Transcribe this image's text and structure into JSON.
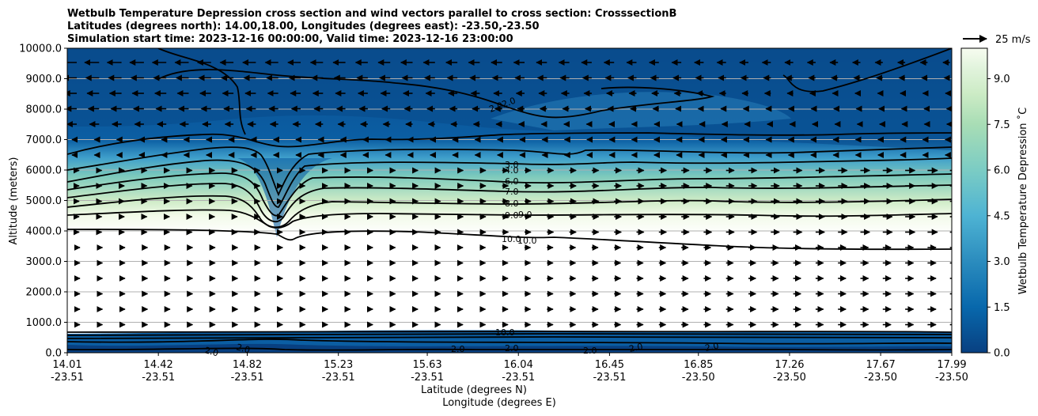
{
  "chart_data": {
    "type": "contourf",
    "title_lines": [
      "Wetbulb Temperature Depression cross section and wind vectors parallel to cross section: CrosssectionB",
      "Latitudes (degrees north): 14.00,18.00, Longitudes (degrees east): -23.50,-23.50",
      "Simulation start time: 2023-12-16 00:00:00, Valid time: 2023-12-16 23:00:00"
    ],
    "ylabel": "Altitude (meters)",
    "xlabel_lines": [
      "Latitude (degrees N)",
      "Longitude (degrees E)"
    ],
    "ylim": [
      0,
      10000
    ],
    "y_ticks": [
      0,
      1000,
      2000,
      3000,
      4000,
      5000,
      6000,
      7000,
      8000,
      9000,
      10000
    ],
    "y_tick_labels": [
      "0.0",
      "1000.0",
      "2000.0",
      "3000.0",
      "4000.0",
      "5000.0",
      "6000.0",
      "7000.0",
      "8000.0",
      "9000.0",
      "10000.0"
    ],
    "x_range": [
      14.01,
      17.99
    ],
    "x_ticks": [
      {
        "lat": "14.01",
        "lon": "-23.51"
      },
      {
        "lat": "14.42",
        "lon": "-23.51"
      },
      {
        "lat": "14.82",
        "lon": "-23.51"
      },
      {
        "lat": "15.23",
        "lon": "-23.51"
      },
      {
        "lat": "15.63",
        "lon": "-23.51"
      },
      {
        "lat": "16.04",
        "lon": "-23.51"
      },
      {
        "lat": "16.45",
        "lon": "-23.51"
      },
      {
        "lat": "16.85",
        "lon": "-23.50"
      },
      {
        "lat": "17.26",
        "lon": "-23.50"
      },
      {
        "lat": "17.67",
        "lon": "-23.50"
      },
      {
        "lat": "17.99",
        "lon": "-23.50"
      }
    ],
    "grid": "horizontal",
    "colorbar": {
      "label": "Wetbulb Temperature Depression ˚C",
      "range": [
        0,
        10
      ],
      "ticks": [
        "0.0",
        "1.5",
        "3.0",
        "4.5",
        "6.0",
        "7.5",
        "9.0"
      ],
      "tick_values": [
        0,
        1.5,
        3,
        4.5,
        6,
        7.5,
        9
      ],
      "colormap": "GnBu_r",
      "colors": [
        "#084081",
        "#0868ac",
        "#2b8cbe",
        "#4eb3d3",
        "#7bccc4",
        "#a8ddb5",
        "#ccebc5",
        "#e0f3db",
        "#f7fcf0"
      ]
    },
    "contour_labels": [
      "2.0",
      "2.0",
      "3.0",
      "4.0",
      "6.0",
      "7.0",
      "8.0",
      "9.0",
      "9.0",
      "10.0",
      "10.0",
      "10.0",
      "2.0",
      "2.0",
      "2.0",
      "2.0",
      "2.0",
      "2.0",
      "2.0"
    ],
    "quiver_key": {
      "label": "25 m/s"
    }
  }
}
